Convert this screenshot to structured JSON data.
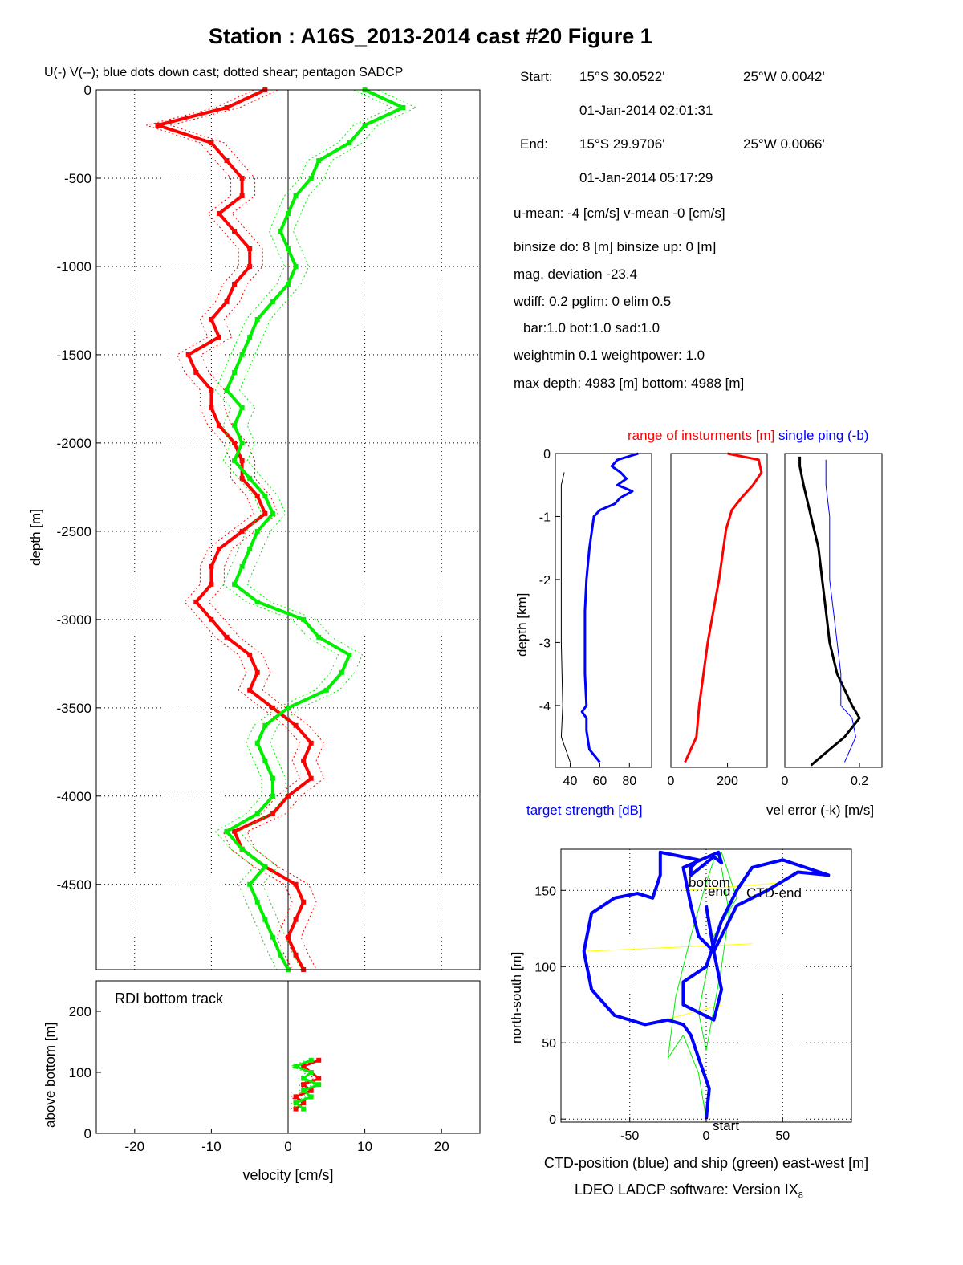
{
  "figure_title": "Station : A16S_2013-2014 cast #20  Figure 1",
  "software_label": "LDEO LADCP software: Version IX",
  "software_subscript": "8",
  "info": {
    "start_label": "Start:",
    "start_lat": "15°S 30.0522'",
    "start_lon": "25°W  0.0042'",
    "start_time": "01-Jan-2014 02:01:31",
    "end_label": "End:",
    "end_lat": "15°S 29.9706'",
    "end_lon": "25°W  0.0066'",
    "end_time": "01-Jan-2014 05:17:29",
    "u_mean": "u-mean:  -4 [cm/s]    v-mean  -0 [cm/s]",
    "binsize": "binsize do: 8 [m]  binsize up:  0 [m]",
    "mag_dev": "mag. deviation -23.4",
    "wdiff": "wdiff: 0.2  pglim: 0  elim 0.5",
    "bar": "bar:1.0 bot:1.0 sad:1.0",
    "weightmin": "weightmin 0.1  weightpower: 1.0",
    "maxdepth": "max depth: 4983 [m]   bottom: 4988 [m]"
  },
  "colors": {
    "u": "#ff0000",
    "v": "#00ee00",
    "blue": "#0000ff",
    "black": "#000000",
    "yellow": "#ffff00"
  },
  "chart_data": [
    {
      "id": "velocity_profile",
      "type": "line",
      "title": "U(-) V(--); blue dots down cast; dotted shear; pentagon SADCP",
      "xlabel": "",
      "ylabel": "depth [m]",
      "xlim": [
        -25,
        25
      ],
      "ylim": [
        -4983,
        0
      ],
      "xticks": [
        -20,
        -10,
        0,
        10,
        20
      ],
      "yticks": [
        0,
        -500,
        -1000,
        -1500,
        -2000,
        -2500,
        -3000,
        -3500,
        -4000,
        -4500
      ],
      "grid": true,
      "series": [
        {
          "color": "#ff0000",
          "depth": [
            0,
            -100,
            -200,
            -300,
            -400,
            -500,
            -600,
            -700,
            -800,
            -900,
            -1000,
            -1100,
            -1200,
            -1300,
            -1400,
            -1500,
            -1600,
            -1700,
            -1800,
            -1900,
            -2000,
            -2100,
            -2200,
            -2300,
            -2400,
            -2500,
            -2600,
            -2700,
            -2800,
            -2900,
            -3000,
            -3100,
            -3200,
            -3300,
            -3400,
            -3500,
            -3600,
            -3700,
            -3800,
            -3900,
            -4000,
            -4100,
            -4200,
            -4300,
            -4400,
            -4500,
            -4600,
            -4700,
            -4800,
            -4900,
            -4983
          ],
          "values": [
            -3,
            -8,
            -17,
            -10,
            -8,
            -6,
            -6,
            -9,
            -7,
            -5,
            -5,
            -7,
            -8,
            -10,
            -9,
            -13,
            -12,
            -10,
            -10,
            -9,
            -7,
            -6,
            -6,
            -4,
            -3,
            -6,
            -9,
            -10,
            -10,
            -12,
            -10,
            -8,
            -5,
            -4,
            -5,
            -2,
            1,
            3,
            2,
            3,
            0,
            -2,
            -7,
            -6,
            -3,
            1,
            2,
            1,
            0,
            1,
            2
          ]
        },
        {
          "color": "#00ee00",
          "depth": [
            0,
            -100,
            -200,
            -300,
            -400,
            -500,
            -600,
            -700,
            -800,
            -900,
            -1000,
            -1100,
            -1200,
            -1300,
            -1400,
            -1500,
            -1600,
            -1700,
            -1800,
            -1900,
            -2000,
            -2100,
            -2200,
            -2300,
            -2400,
            -2500,
            -2600,
            -2700,
            -2800,
            -2900,
            -3000,
            -3100,
            -3200,
            -3300,
            -3400,
            -3500,
            -3600,
            -3700,
            -3800,
            -3900,
            -4000,
            -4100,
            -4200,
            -4300,
            -4400,
            -4500,
            -4600,
            -4700,
            -4800,
            -4900,
            -4983
          ],
          "values": [
            10,
            15,
            10,
            8,
            4,
            3,
            1,
            0,
            -1,
            0,
            1,
            0,
            -2,
            -4,
            -5,
            -6,
            -7,
            -8,
            -6,
            -7,
            -6,
            -7,
            -5,
            -3,
            -2,
            -4,
            -5,
            -6,
            -7,
            -4,
            2,
            4,
            8,
            7,
            5,
            0,
            -3,
            -4,
            -3,
            -2,
            -2,
            -4,
            -8,
            -6,
            -3,
            -5,
            -4,
            -3,
            -2,
            -1,
            0
          ]
        }
      ]
    },
    {
      "id": "bottom_track",
      "type": "line",
      "title": "RDI bottom track",
      "xlabel": "velocity [cm/s]",
      "ylabel": "above bottom [m]",
      "xlim": [
        -25,
        25
      ],
      "ylim": [
        0,
        250
      ],
      "xticks": [
        -20,
        -10,
        0,
        10,
        20
      ],
      "yticks": [
        0,
        100,
        200
      ],
      "series": [
        {
          "color": "#ff0000",
          "height": [
            40,
            50,
            60,
            70,
            80,
            90,
            100,
            110,
            120
          ],
          "values": [
            1,
            2,
            1,
            3,
            2,
            4,
            3,
            2,
            4
          ]
        },
        {
          "color": "#00ee00",
          "height": [
            40,
            50,
            60,
            70,
            80,
            90,
            100,
            110,
            120
          ],
          "values": [
            2,
            1,
            3,
            2,
            4,
            2,
            3,
            1,
            3
          ]
        }
      ]
    },
    {
      "id": "target_strength",
      "type": "line",
      "title": "",
      "xlabel": "target strength [dB]",
      "ylabel": "depth [km]",
      "xlim": [
        30,
        95
      ],
      "ylim": [
        -4.983,
        0
      ],
      "xticks": [
        40,
        60,
        80
      ],
      "yticks": [
        0,
        -1,
        -2,
        -3,
        -4
      ],
      "series": [
        {
          "color": "#0000ff",
          "depth": [
            0,
            -0.1,
            -0.2,
            -0.3,
            -0.4,
            -0.5,
            -0.6,
            -0.7,
            -0.8,
            -0.9,
            -1.0,
            -1.5,
            -2.0,
            -2.5,
            -3.0,
            -3.5,
            -4.0,
            -4.1,
            -4.2,
            -4.4,
            -4.7,
            -4.9
          ],
          "values": [
            86,
            72,
            68,
            74,
            78,
            72,
            82,
            74,
            70,
            60,
            56,
            53,
            51,
            50,
            50,
            50,
            51,
            48,
            51,
            51,
            53,
            60
          ]
        },
        {
          "color": "#000000",
          "depth": [
            -0.3,
            -0.5,
            -1.0,
            -2.0,
            -3.0,
            -4.0,
            -4.5,
            -4.9
          ],
          "values": [
            36,
            34,
            34,
            34,
            34,
            35,
            34,
            40
          ]
        }
      ]
    },
    {
      "id": "range",
      "type": "line",
      "title": "range of insturments [m]",
      "xlabel": "",
      "ylabel": "",
      "xlim": [
        0,
        340
      ],
      "ylim": [
        -4.983,
        0
      ],
      "xticks": [
        0,
        200
      ],
      "series": [
        {
          "color": "#ff0000",
          "depth": [
            0,
            -0.1,
            -0.3,
            -0.5,
            -0.7,
            -0.9,
            -1.2,
            -2.0,
            -3.0,
            -4.0,
            -4.5,
            -4.9
          ],
          "values": [
            200,
            310,
            320,
            290,
            250,
            215,
            195,
            170,
            130,
            100,
            90,
            50
          ]
        }
      ]
    },
    {
      "id": "vel_error",
      "type": "line",
      "title": "single ping (-b)",
      "xlabel": "vel error (-k) [m/s]",
      "ylabel": "",
      "xlim": [
        0,
        0.26
      ],
      "ylim": [
        -4.983,
        0
      ],
      "xticks": [
        0,
        0.2
      ],
      "series": [
        {
          "color": "#000000",
          "depth": [
            -0.05,
            -0.2,
            -0.5,
            -1.0,
            -1.5,
            -2.0,
            -2.5,
            -3.0,
            -3.5,
            -4.0,
            -4.2,
            -4.5,
            -4.8,
            -4.95
          ],
          "values": [
            0.04,
            0.04,
            0.05,
            0.07,
            0.09,
            0.1,
            0.11,
            0.12,
            0.14,
            0.18,
            0.2,
            0.16,
            0.1,
            0.07
          ]
        },
        {
          "color": "#0000ff",
          "depth": [
            -0.1,
            -0.5,
            -1.0,
            -1.5,
            -2.0,
            -2.5,
            -3.0,
            -3.5,
            -4.0,
            -4.2,
            -4.5,
            -4.9
          ],
          "values": [
            0.11,
            0.11,
            0.12,
            0.12,
            0.12,
            0.13,
            0.14,
            0.15,
            0.15,
            0.18,
            0.19,
            0.16
          ]
        }
      ]
    },
    {
      "id": "position",
      "type": "line",
      "title": "",
      "xlabel": "CTD-position (blue) and ship (green) east-west [m]",
      "ylabel": "north-south [m]",
      "xlim": [
        -95,
        95
      ],
      "ylim": [
        -2,
        177
      ],
      "xticks": [
        -50,
        0,
        50
      ],
      "yticks": [
        0,
        50,
        100,
        150
      ],
      "annotations": [
        "start",
        "bottom",
        "end",
        "CTD-end"
      ],
      "series": [
        {
          "color": "#0000ff",
          "x": [
            0,
            2,
            -5,
            -10,
            -15,
            -25,
            -40,
            -60,
            -75,
            -80,
            -75,
            -60,
            -45,
            -35,
            -30,
            -30,
            -15,
            -5,
            -10,
            -10,
            5,
            10,
            8,
            -15,
            -10,
            -5,
            5,
            20,
            40,
            60,
            80,
            50,
            30,
            20,
            10,
            0,
            -15,
            -15,
            5,
            10,
            5,
            0
          ],
          "y": [
            0,
            20,
            40,
            55,
            62,
            65,
            62,
            68,
            85,
            110,
            135,
            145,
            148,
            145,
            160,
            175,
            172,
            170,
            165,
            160,
            172,
            168,
            175,
            165,
            140,
            120,
            110,
            140,
            150,
            162,
            160,
            170,
            165,
            150,
            130,
            100,
            90,
            75,
            65,
            85,
            110,
            140
          ]
        },
        {
          "color": "#00ee00",
          "x": [
            0,
            -5,
            -15,
            -25,
            -20,
            -10,
            0,
            5,
            10,
            20,
            5,
            0,
            -5,
            0,
            10,
            15,
            10
          ],
          "y": [
            0,
            30,
            55,
            40,
            80,
            120,
            155,
            170,
            175,
            145,
            120,
            95,
            70,
            45,
            100,
            135,
            165
          ]
        }
      ]
    }
  ]
}
